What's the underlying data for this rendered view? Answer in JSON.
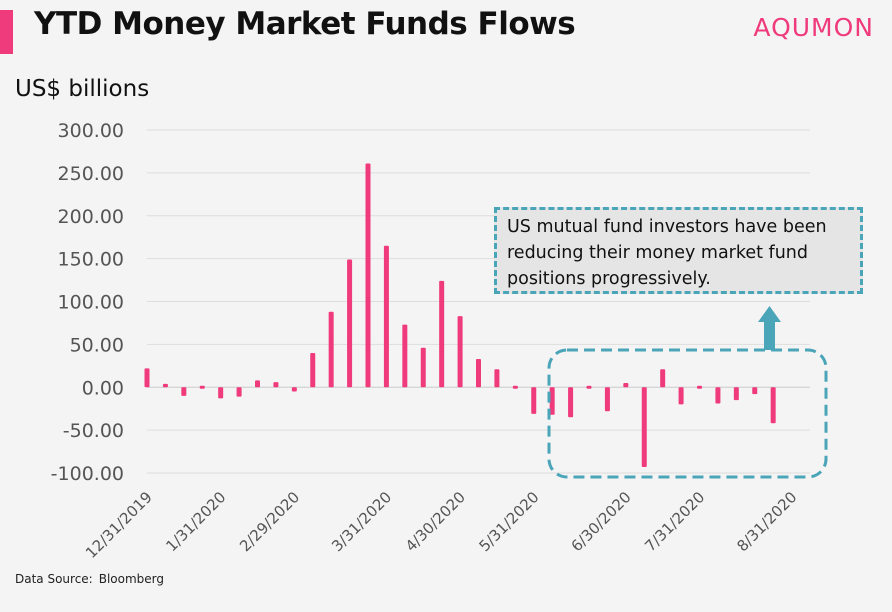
{
  "header": {
    "title": "YTD Money Market Funds Flows",
    "brand": "AQUMON"
  },
  "footer": {
    "source_label": "Data Source:",
    "source_value": "Bloomberg"
  },
  "annotation": {
    "text": "US mutual fund investors have been reducing their money market fund positions progressively."
  },
  "colors": {
    "bar": "#ef3a7b",
    "accent": "#ef3a7b",
    "annotation_border": "#4aa5b8",
    "gridline": "#dddddd"
  },
  "chart_data": {
    "type": "bar",
    "title": "YTD Money Market Funds Flows",
    "ylabel": "US$ billions",
    "ylim": [
      -100,
      300
    ],
    "yticks": [
      300,
      250,
      200,
      150,
      100,
      50,
      0,
      -50,
      -100
    ],
    "ytick_labels": [
      "300.00",
      "250.00",
      "200.00",
      "150.00",
      "100.00",
      "50.00",
      "0.00",
      "-50.00",
      "-100.00"
    ],
    "xlim": [
      0,
      36
    ],
    "xticks": [
      0,
      4,
      8,
      13,
      17,
      21,
      26,
      30,
      35
    ],
    "xtick_labels": [
      "12/31/2019",
      "1/31/2020",
      "2/29/2020",
      "3/31/2020",
      "4/30/2020",
      "5/31/2020",
      "6/30/2020",
      "7/31/2020",
      "8/31/2020"
    ],
    "grid": true,
    "legend": "none",
    "series": [
      {
        "values": [
          22,
          4,
          -10,
          1,
          -13,
          -11,
          8,
          6,
          -5,
          40,
          88,
          149,
          261,
          165,
          73,
          46,
          124,
          83,
          33,
          21,
          1,
          -31,
          -32,
          -35,
          1,
          -28,
          5,
          -93,
          21,
          -20,
          1,
          -19,
          -15,
          -8,
          -42
        ]
      }
    ]
  }
}
